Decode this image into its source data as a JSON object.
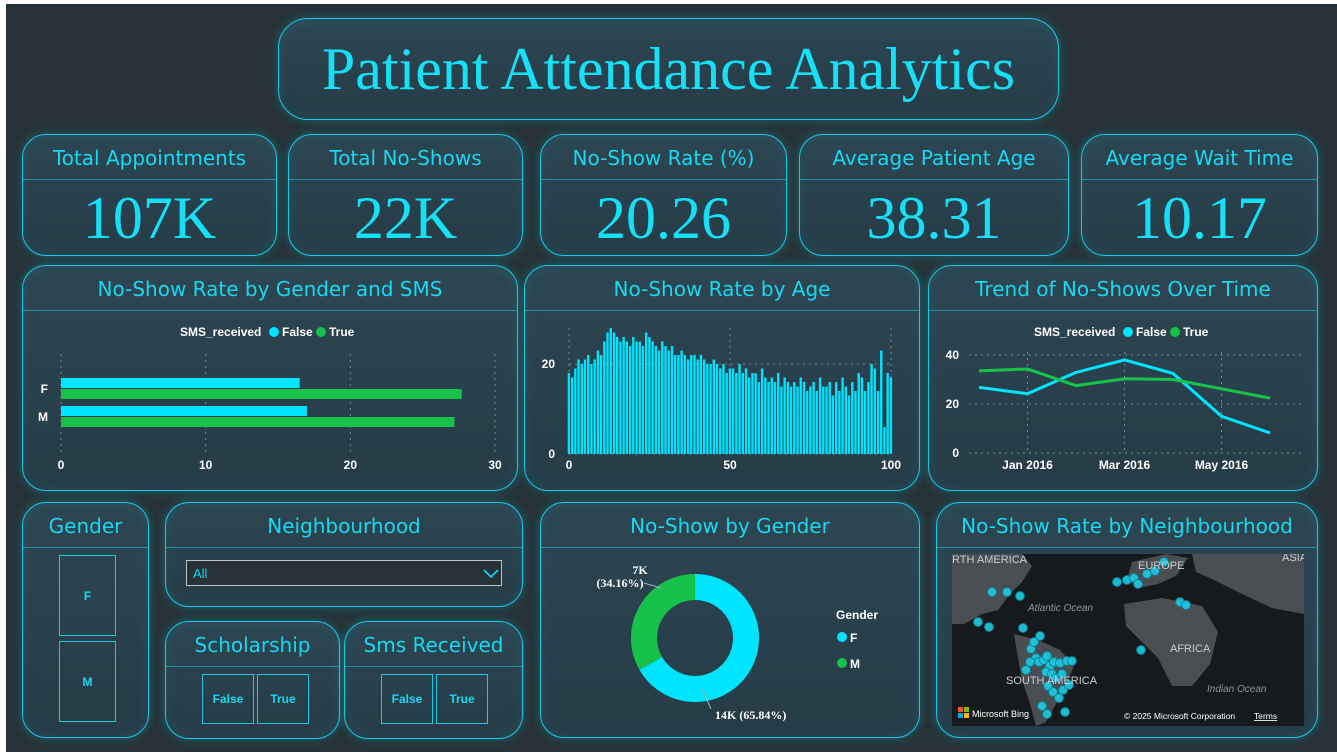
{
  "title": "Patient Attendance Analytics",
  "kpis": [
    {
      "label": "Total Appointments",
      "value": "107K"
    },
    {
      "label": "Total No-Shows",
      "value": "22K"
    },
    {
      "label": "No-Show Rate (%)",
      "value": "20.26"
    },
    {
      "label": "Average Patient Age",
      "value": "38.31"
    },
    {
      "label": "Average Wait Time",
      "value": "10.17"
    }
  ],
  "colors": {
    "false": "#00e5ff",
    "true": "#17c24a",
    "accent": "#19d8f0",
    "background": "#263238"
  },
  "chart_data": [
    {
      "type": "bar",
      "title": "No-Show Rate by Gender and SMS",
      "orientation": "horizontal",
      "legend_title": "SMS_received",
      "categories": [
        "F",
        "M"
      ],
      "series": [
        {
          "name": "False",
          "values": [
            16.5,
            17.0
          ]
        },
        {
          "name": "True",
          "values": [
            27.7,
            27.2
          ]
        }
      ],
      "xlim": [
        0,
        30
      ],
      "xticks": [
        "0",
        "10",
        "20",
        "30"
      ]
    },
    {
      "type": "bar",
      "title": "No-Show Rate by Age",
      "xlim": [
        0,
        100
      ],
      "ylim": [
        0,
        28
      ],
      "xticks": [
        "0",
        "50",
        "100"
      ],
      "yticks": [
        "0",
        "20"
      ],
      "x": [
        0,
        1,
        2,
        3,
        4,
        5,
        6,
        7,
        8,
        9,
        10,
        11,
        12,
        13,
        14,
        15,
        16,
        17,
        18,
        19,
        20,
        21,
        22,
        23,
        24,
        25,
        26,
        27,
        28,
        29,
        30,
        31,
        32,
        33,
        34,
        35,
        36,
        37,
        38,
        39,
        40,
        41,
        42,
        43,
        44,
        45,
        46,
        47,
        48,
        49,
        50,
        51,
        52,
        53,
        54,
        55,
        56,
        57,
        58,
        59,
        60,
        61,
        62,
        63,
        64,
        65,
        66,
        67,
        68,
        69,
        70,
        71,
        72,
        73,
        74,
        75,
        76,
        77,
        78,
        79,
        80,
        81,
        82,
        83,
        84,
        85,
        86,
        87,
        88,
        89,
        90,
        91,
        92,
        93,
        94,
        95,
        96,
        97,
        98,
        99,
        100
      ],
      "values": [
        18,
        17,
        19,
        21,
        20,
        21,
        22,
        20,
        21,
        23,
        22,
        25,
        27,
        28,
        27,
        26,
        25,
        26,
        25,
        24,
        26,
        25,
        25,
        24,
        27,
        26,
        25,
        24,
        23,
        25,
        24,
        23,
        24,
        22,
        22,
        23,
        22,
        21,
        22,
        22,
        21,
        22,
        21,
        20,
        20,
        21,
        20,
        19,
        20,
        18,
        19,
        19,
        18,
        20,
        18,
        19,
        17,
        18,
        18,
        16,
        19,
        17,
        16,
        17,
        16,
        18,
        15,
        17,
        16,
        15,
        16,
        15,
        17,
        16,
        14,
        15,
        16,
        14,
        17,
        15,
        15,
        16,
        13,
        16,
        14,
        17,
        15,
        13,
        16,
        14,
        18,
        17,
        14,
        16,
        20,
        19,
        14,
        23,
        6,
        18,
        17
      ]
    },
    {
      "type": "line",
      "title": "Trend of No-Shows Over Time",
      "legend_title": "SMS_received",
      "x": [
        "Dec 2015",
        "Jan 2016",
        "Feb 2016",
        "Mar 2016",
        "Apr 2016",
        "May 2016",
        "Jun 2016"
      ],
      "xticks": [
        "Jan 2016",
        "Mar 2016",
        "May 2016"
      ],
      "ylim": [
        0,
        40
      ],
      "yticks": [
        "0",
        "20",
        "40"
      ],
      "series": [
        {
          "name": "False",
          "values": [
            26.8,
            24.2,
            32.9,
            38.0,
            32.5,
            15.0,
            8.2
          ]
        },
        {
          "name": "True",
          "values": [
            33.5,
            34.3,
            27.5,
            30.3,
            30.0,
            26.2,
            22.4
          ]
        }
      ]
    },
    {
      "type": "pie",
      "title": "No-Show by Gender",
      "legend_title": "Gender",
      "labels": [
        "F",
        "M"
      ],
      "values": [
        14,
        7
      ],
      "percents": [
        65.84,
        34.16
      ],
      "data_labels": [
        "14K (65.84%)",
        "7K (34.16%)"
      ]
    }
  ],
  "map": {
    "title": "No-Show Rate by Neighbourhood",
    "labels": [
      "RTH AMERICA",
      "EUROPE",
      "ASIA",
      "Atlantic Ocean",
      "AFRICA",
      "SOUTH AMERICA",
      "Indian Ocean"
    ],
    "brand": "Microsoft Bing",
    "copyright": "© 2025 Microsoft Corporation",
    "terms": "Terms"
  },
  "slicers": {
    "gender": {
      "title": "Gender",
      "options": [
        "F",
        "M"
      ]
    },
    "neighbourhood": {
      "title": "Neighbourhood",
      "value": "All"
    },
    "scholarship": {
      "title": "Scholarship",
      "options": [
        "False",
        "True"
      ]
    },
    "sms": {
      "title": "Sms Received",
      "options": [
        "False",
        "True"
      ]
    }
  }
}
